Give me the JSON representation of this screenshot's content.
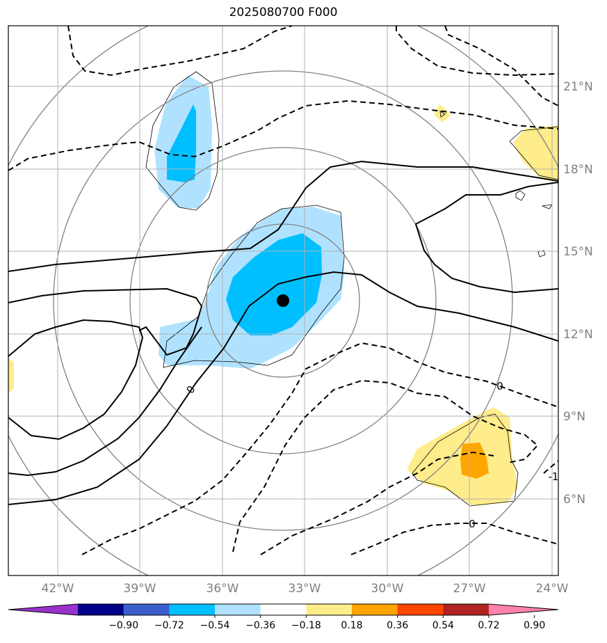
{
  "title": "2025080700 F000",
  "map": {
    "lon_labels": [
      "42°W",
      "39°W",
      "36°W",
      "33°W",
      "30°W",
      "27°W",
      "24°W"
    ],
    "lat_labels": [
      "21°N",
      "18°N",
      "15°N",
      "12°N",
      "9°N",
      "6°N"
    ],
    "center_marker": {
      "lon": -33.8,
      "lat": 13.2
    },
    "contour_labels": [
      "0",
      "0",
      "0",
      "-1"
    ]
  },
  "colorbar": {
    "levels": [
      "−0.90",
      "−0.72",
      "−0.54",
      "−0.36",
      "−0.18",
      "0.18",
      "0.36",
      "0.54",
      "0.72",
      "0.90"
    ],
    "colors": [
      "#9932cc",
      "#00008b",
      "#3a5fcd",
      "#00bfff",
      "#b0e2ff",
      "#ffffff",
      "#ffec8b",
      "#ffa500",
      "#ff4500",
      "#b22222",
      "#ff82ab"
    ]
  }
}
